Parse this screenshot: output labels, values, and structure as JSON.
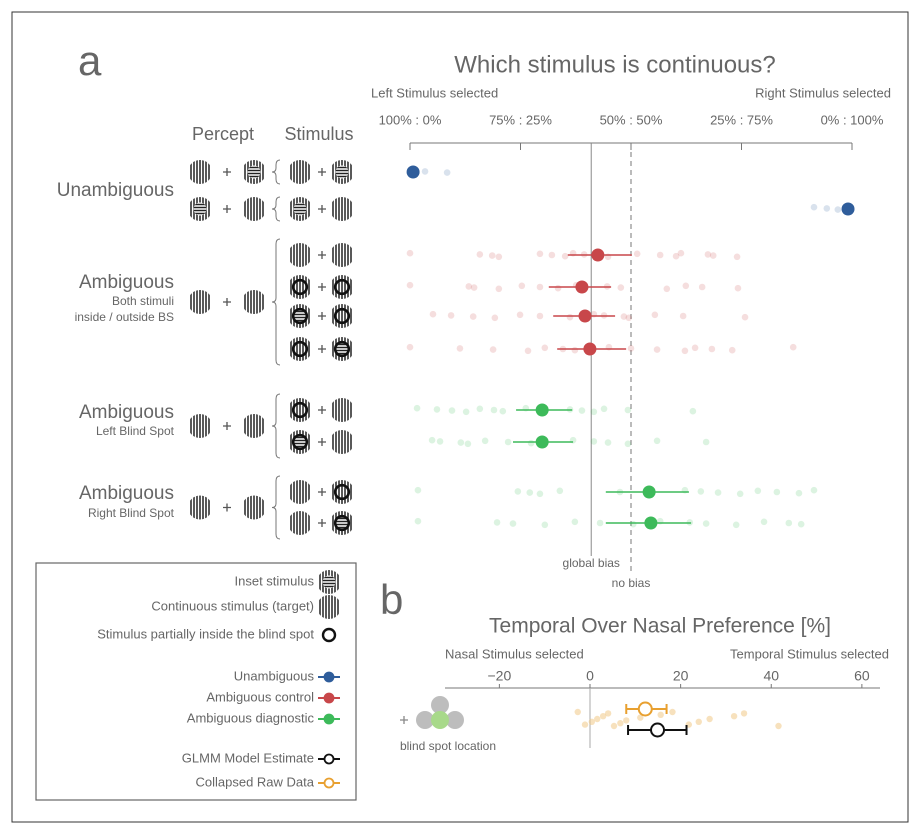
{
  "chart_data": [
    {
      "type": "dotplot",
      "panel_label": "a",
      "title": "Which stimulus is continuous?",
      "x_label_left": "Left Stimulus selected",
      "x_label_right": "Right Stimulus selected",
      "xlim": [
        0,
        100
      ],
      "xticks": [
        {
          "value": 0,
          "label": "100% : 0%"
        },
        {
          "value": 25,
          "label": "75% : 25%"
        },
        {
          "value": 50,
          "label": "50% : 50%"
        },
        {
          "value": 75,
          "label": "25% : 75%"
        },
        {
          "value": 100,
          "label": "0% : 100%"
        }
      ],
      "reference_lines": [
        {
          "value": 41,
          "label": "global bias",
          "style": "solid"
        },
        {
          "value": 50,
          "label": "no bias",
          "style": "dashed"
        }
      ],
      "column_headers": [
        "Percept",
        "Stimulus"
      ],
      "groups": [
        {
          "label": "Unambiguous",
          "sublabel": [],
          "color": "#2f5d9b",
          "rows": [
            {
              "mean": 0.7,
              "ci": null,
              "raw": [
                0.7,
                3.4,
                8.4
              ]
            },
            {
              "mean": 99.1,
              "ci": null,
              "raw": [
                91.4,
                94.3,
                96.8,
                98.6
              ]
            }
          ]
        },
        {
          "label": "Ambiguous",
          "sublabel": [
            "Both stimuli",
            "inside / outside BS"
          ],
          "color": "#c8474a",
          "rows": [
            {
              "mean": 42.5,
              "ci": [
                35.7,
                50.2
              ],
              "raw": [
                0,
                15.8,
                18.6,
                20.1,
                29.4,
                32.1,
                35.1,
                36.9,
                39.4,
                42.1,
                44.8,
                51.4,
                56.6,
                60.2,
                61.3,
                67.4,
                68.6,
                74.0
              ]
            },
            {
              "mean": 38.9,
              "ci": [
                31.4,
                45.5
              ],
              "raw": [
                0,
                13.3,
                14.5,
                20.1,
                25.3,
                29.4,
                33.5,
                37.6,
                44.6,
                47.7,
                58.1,
                62.4,
                66.1,
                74.2
              ]
            },
            {
              "mean": 39.6,
              "ci": [
                32.4,
                46.4
              ],
              "raw": [
                5.2,
                9.3,
                14.3,
                19.2,
                24.9,
                29.4,
                36.2,
                41.6,
                43.9,
                48.4,
                49.5,
                55.4,
                61.8,
                75.8
              ]
            },
            {
              "mean": 40.7,
              "ci": [
                33.3,
                48.9
              ],
              "raw": [
                0,
                11.3,
                18.8,
                26.7,
                30.5,
                34.6,
                37.3,
                45.0,
                50.0,
                55.9,
                62.2,
                64.5,
                68.3,
                72.9,
                86.7
              ]
            }
          ]
        },
        {
          "label": "Ambiguous",
          "sublabel": [
            "Left Blind Spot"
          ],
          "color": "#3dba5a",
          "rows": [
            {
              "mean": 29.9,
              "ci": [
                24.0,
                36.7
              ],
              "raw": [
                1.6,
                6.1,
                9.5,
                12.7,
                15.8,
                19.0,
                21.0,
                26.2,
                36.2,
                38.9,
                41.6,
                43.9,
                49.3,
                64.0
              ]
            },
            {
              "mean": 29.9,
              "ci": [
                23.3,
                36.9
              ],
              "raw": [
                5.0,
                6.8,
                11.5,
                13.1,
                17.0,
                22.2,
                27.4,
                36.9,
                41.6,
                44.8,
                49.3,
                55.9,
                67.0
              ]
            }
          ]
        },
        {
          "label": "Ambiguous",
          "sublabel": [
            "Right Blind Spot"
          ],
          "color": "#3dba5a",
          "rows": [
            {
              "mean": 54.1,
              "ci": [
                44.3,
                63.1
              ],
              "raw": [
                1.8,
                24.4,
                27.1,
                29.4,
                33.9,
                47.5,
                54.8,
                62.2,
                65.8,
                69.7,
                74.7,
                78.7,
                83.0,
                88.0,
                91.4
              ]
            },
            {
              "mean": 54.5,
              "ci": [
                44.3,
                63.6
              ],
              "raw": [
                1.8,
                19.7,
                23.3,
                30.5,
                37.3,
                43.0,
                50.5,
                56.6,
                63.3,
                67.0,
                73.8,
                80.1,
                85.7,
                88.5
              ]
            }
          ]
        }
      ]
    },
    {
      "type": "dotplot",
      "panel_label": "b",
      "title": "Temporal Over Nasal Preference [%]",
      "x_label_left": "Nasal Stimulus selected",
      "x_label_right": "Temporal Stimulus selected",
      "xlim": [
        -32,
        64
      ],
      "xticks": [
        {
          "value": -20,
          "label": "−20"
        },
        0,
        20,
        40,
        60
      ],
      "icon_label": "blind spot location",
      "raw_color": "#f0c887",
      "raw": [
        -2.7,
        -1.1,
        0.4,
        1.6,
        2.9,
        4.0,
        5.3,
        6.7,
        8.0,
        11.1,
        15.6,
        18.2,
        21.8,
        24.0,
        26.4,
        31.8,
        34.0,
        41.6
      ],
      "estimates": [
        {
          "color": "#e8a030",
          "mean": 12.2,
          "ci": [
            8.0,
            16.9
          ]
        },
        {
          "color": "#111111",
          "mean": 14.9,
          "ci": [
            8.4,
            21.3
          ]
        }
      ]
    }
  ],
  "legend": {
    "icon_entries": [
      "Inset stimulus",
      "Continuous stimulus (target)",
      "Stimulus partially inside the blind spot"
    ],
    "color_entries": [
      {
        "name": "Unambiguous",
        "color": "#2f5d9b"
      },
      {
        "name": "Ambiguous control",
        "color": "#c8474a"
      },
      {
        "name": "Ambiguous diagnostic",
        "color": "#3dba5a"
      },
      {
        "name": "GLMM Model Estimate",
        "color": "#111111"
      },
      {
        "name": "Collapsed Raw Data",
        "color": "#e8a030"
      }
    ]
  }
}
